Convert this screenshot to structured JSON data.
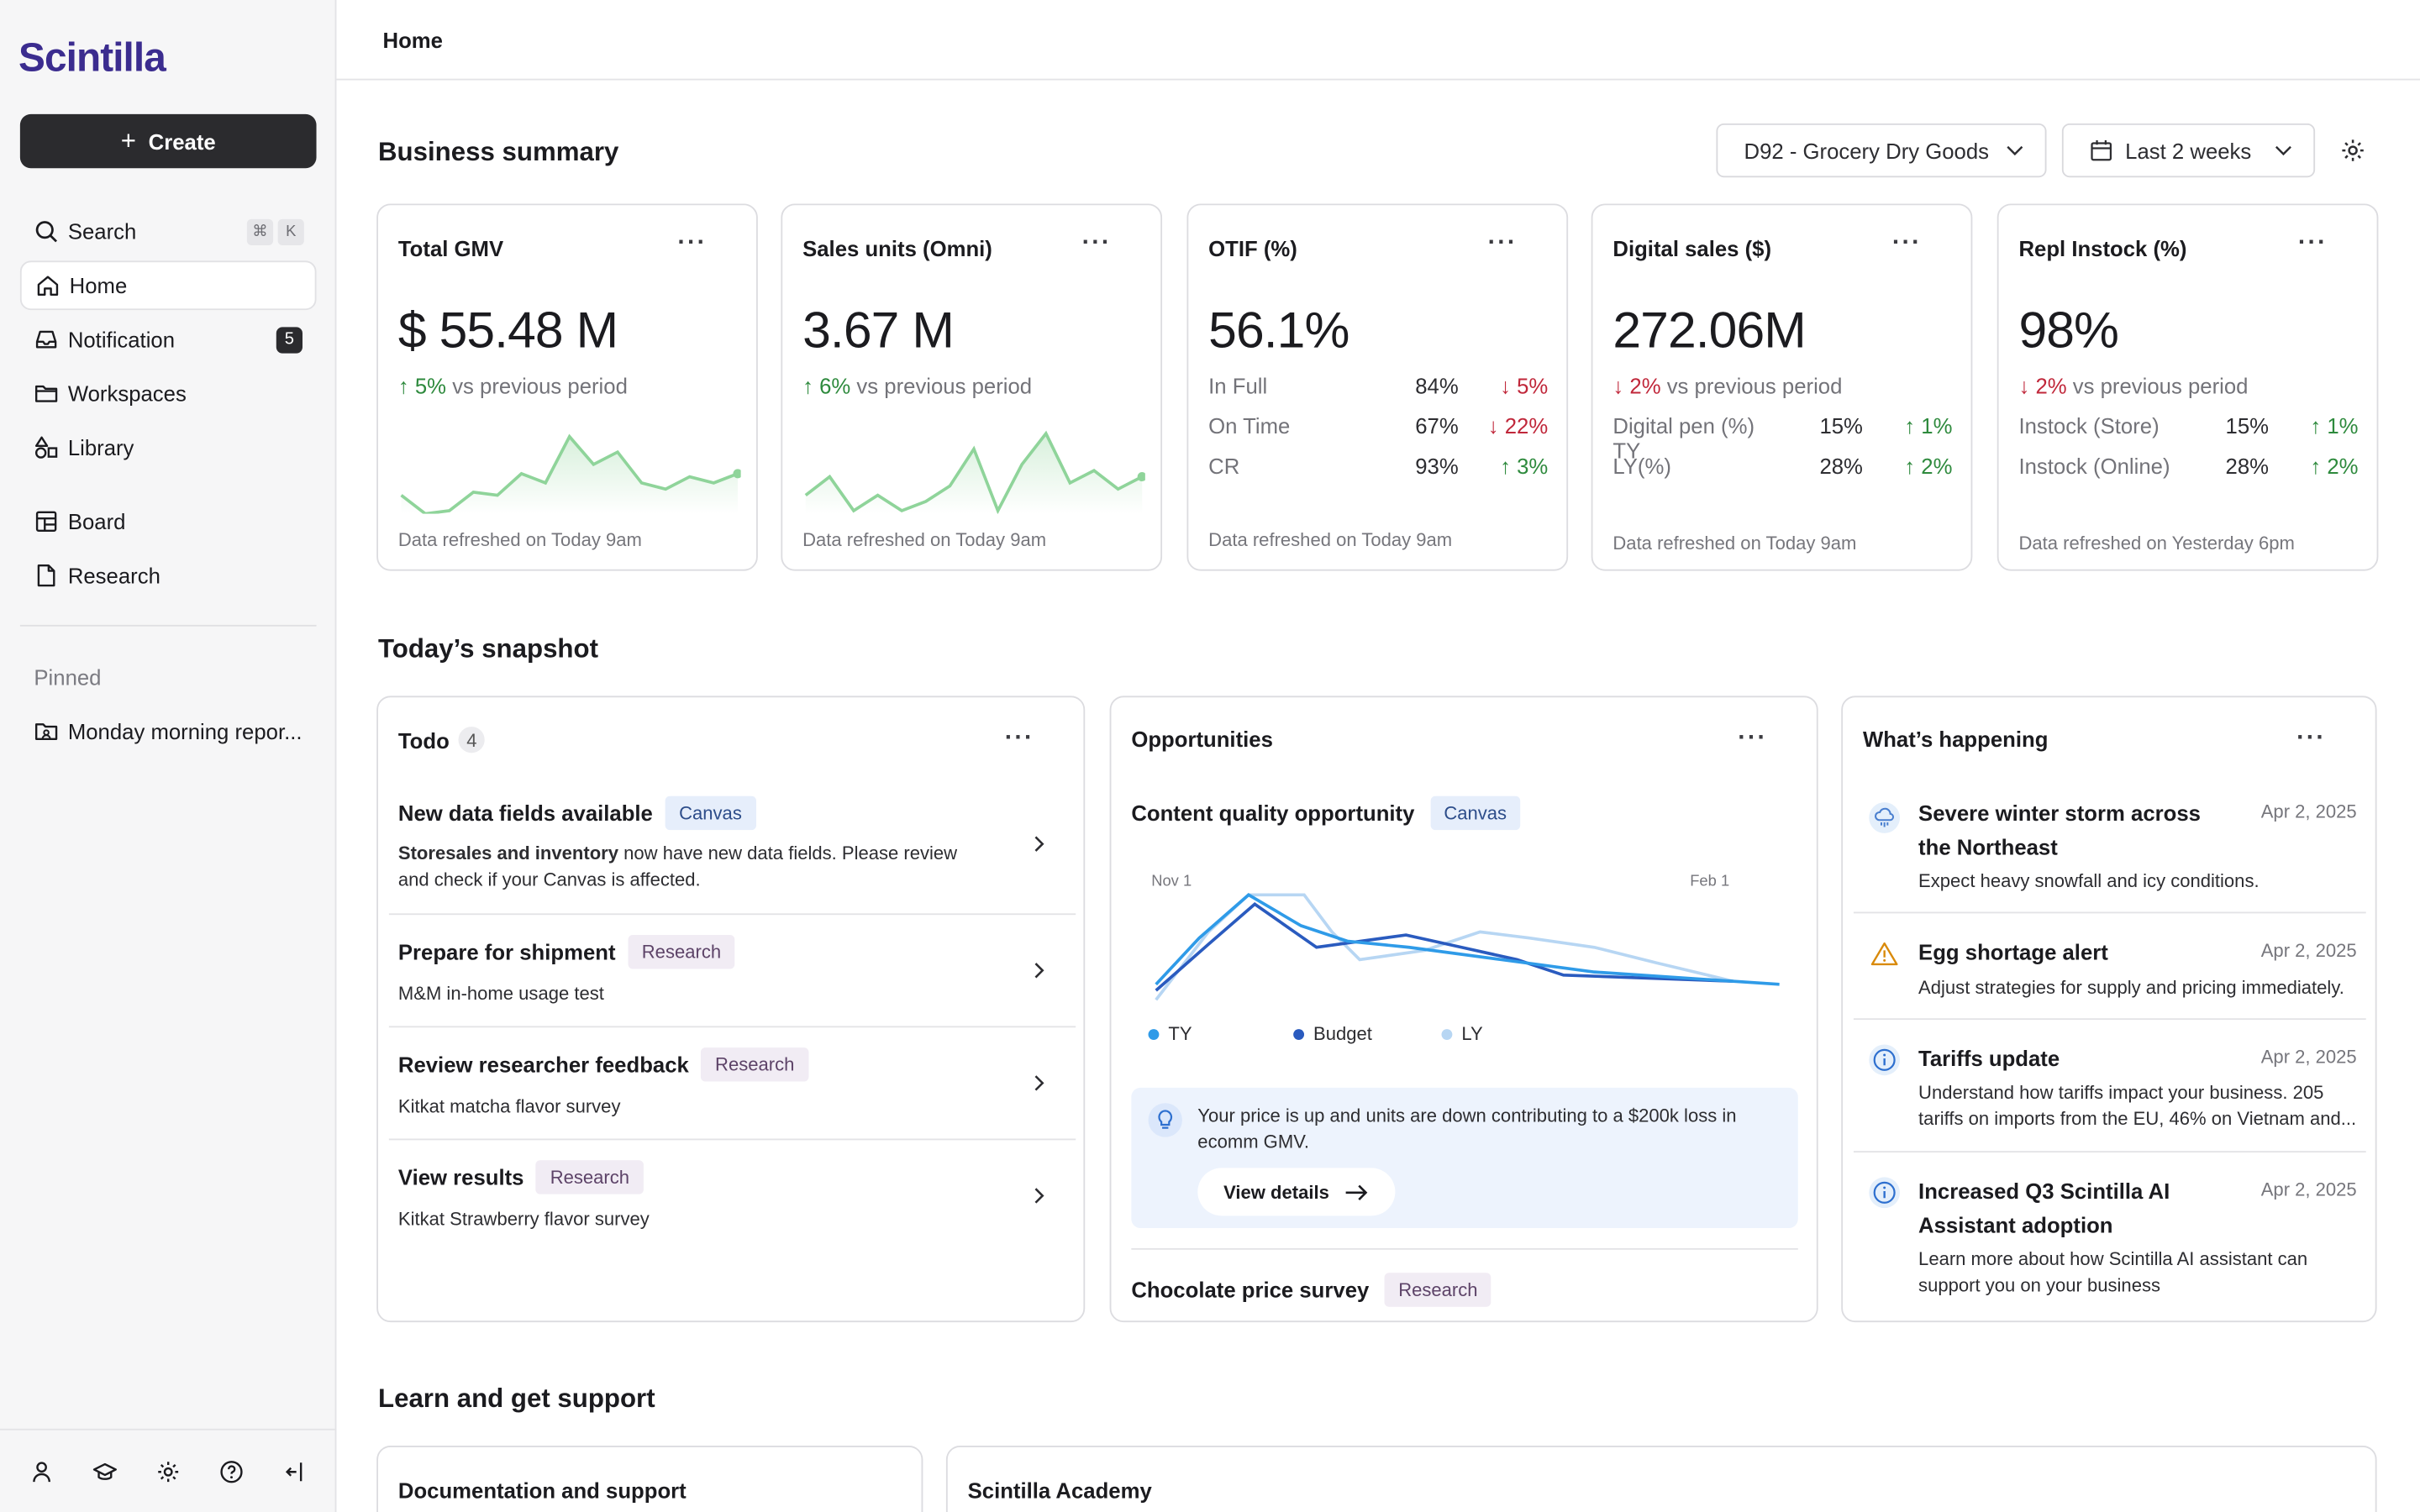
{
  "app": {
    "logo": "Scintilla",
    "create_label": "Create"
  },
  "sidebar": {
    "search": {
      "label": "Search",
      "shortcut": [
        "⌘",
        "K"
      ]
    },
    "items": [
      {
        "label": "Home",
        "icon": "home-icon",
        "active": true
      },
      {
        "label": "Notification",
        "icon": "inbox-icon",
        "count": "5"
      },
      {
        "label": "Workspaces",
        "icon": "folder-icon"
      },
      {
        "label": "Library",
        "icon": "shapes-icon"
      },
      {
        "label": "Board",
        "icon": "board-icon"
      },
      {
        "label": "Research",
        "icon": "document-icon"
      }
    ],
    "pinned_label": "Pinned",
    "pinned_items": [
      {
        "label": "Monday morning repor..."
      }
    ]
  },
  "header": {
    "breadcrumb": "Home"
  },
  "business_summary": {
    "title": "Business summary",
    "department_filter": "D92 - Grocery Dry Goods",
    "date_filter": "Last 2 weeks",
    "cards": [
      {
        "title": "Total GMV",
        "value": "$ 55.48 M",
        "change": "5%",
        "direction": "up",
        "change_suffix": "vs previous period",
        "footer": "Data refreshed on Today 9am",
        "sparkline": [
          60,
          72,
          70,
          58,
          60,
          46,
          52,
          22,
          40,
          32,
          52,
          56,
          48,
          52,
          46
        ]
      },
      {
        "title": "Sales units (Omni)",
        "value": "3.67 M",
        "change": "6%",
        "direction": "up",
        "change_suffix": "vs previous period",
        "footer": "Data refreshed on Today 9am",
        "sparkline": [
          60,
          48,
          70,
          60,
          70,
          64,
          54,
          30,
          70,
          40,
          20,
          52,
          44,
          56,
          48
        ]
      },
      {
        "title": "OTIF (%)",
        "value": "56.1%",
        "rows": [
          {
            "label": "In Full",
            "value": "84%",
            "change": "5%",
            "direction": "down"
          },
          {
            "label": "On Time",
            "value": "67%",
            "change": "22%",
            "direction": "down"
          },
          {
            "label": "CR",
            "value": "93%",
            "change": "3%",
            "direction": "up"
          }
        ],
        "footer": "Data refreshed on Today 9am"
      },
      {
        "title": "Digital sales ($)",
        "value": "272.06M",
        "change": "2%",
        "direction": "down",
        "change_suffix": "vs previous period",
        "rows": [
          {
            "label": "Digital pen (%) TY",
            "value": "15%",
            "change": "1%",
            "direction": "up"
          },
          {
            "label": "LY(%)",
            "value": "28%",
            "change": "2%",
            "direction": "up"
          }
        ],
        "footer": "Data refreshed on Today 9am"
      },
      {
        "title": "Repl Instock (%)",
        "value": "98%",
        "change": "2%",
        "direction": "down",
        "change_suffix": "vs previous period",
        "rows": [
          {
            "label": "Instock (Store)",
            "value": "15%",
            "change": "1%",
            "direction": "up"
          },
          {
            "label": "Instock (Online)",
            "value": "28%",
            "change": "2%",
            "direction": "up"
          }
        ],
        "footer": "Data refreshed on Yesterday 6pm"
      }
    ]
  },
  "snapshot": {
    "title": "Today’s snapshot",
    "todo": {
      "title": "Todo",
      "count": "4",
      "items": [
        {
          "title": "New data fields available",
          "tag": "Canvas",
          "desc_bold": "Storesales and inventory",
          "desc": " now have new data fields. Please review and check if your Canvas is affected."
        },
        {
          "title": "Prepare for shipment",
          "tag": "Research",
          "desc_bold": "",
          "desc": "M&M in-home usage test"
        },
        {
          "title": "Review researcher feedback",
          "tag": "Research",
          "desc_bold": "",
          "desc": "Kitkat matcha flavor survey"
        },
        {
          "title": "View results",
          "tag": "Research",
          "desc_bold": "",
          "desc": "Kitkat Strawberry flavor survey"
        }
      ]
    },
    "opportunities": {
      "title": "Opportunities",
      "item_title": "Content quality opportunity",
      "item_tag": "Canvas",
      "chart_start": "Nov 1",
      "chart_end": "Feb 1",
      "legend": [
        "TY",
        "Budget",
        "LY"
      ],
      "callout": "Your price is up and units are down contributing to a $200k loss in ecomm GMV.",
      "view_label": "View details",
      "next_title": "Chocolate price survey",
      "next_tag": "Research"
    },
    "whats_happening": {
      "title": "What’s happening",
      "items": [
        {
          "title": "Severe winter storm across the Northeast",
          "date": "Apr 2, 2025",
          "desc": "Expect heavy snowfall and icy conditions.",
          "icon": "storm-icon"
        },
        {
          "title": "Egg shortage alert",
          "date": "Apr 2, 2025",
          "desc": "Adjust strategies for supply and pricing immediately.",
          "icon": "warning-icon"
        },
        {
          "title": "Tariffs update",
          "date": "Apr 2, 2025",
          "desc": "Understand how tariffs impact your business. 205 tariffs on imports from the EU, 46% on Vietnam and...",
          "icon": "info-icon"
        },
        {
          "title": "Increased Q3 Scintilla AI Assistant adoption",
          "date": "Apr 2, 2025",
          "desc": "Learn more about how Scintilla AI assistant can support you on your business",
          "icon": "info-icon"
        }
      ]
    }
  },
  "learn": {
    "title": "Learn and get support",
    "cards": [
      {
        "title": "Documentation and support"
      },
      {
        "title": "Scintilla Academy"
      }
    ]
  },
  "colors": {
    "brand": "#3b2c8f",
    "up": "#2e8a3d",
    "down": "#c0273a",
    "spark": "#8fd49a",
    "ty": "#2f9be8",
    "budget": "#2a5bbf",
    "ly": "#b7d6f3"
  }
}
